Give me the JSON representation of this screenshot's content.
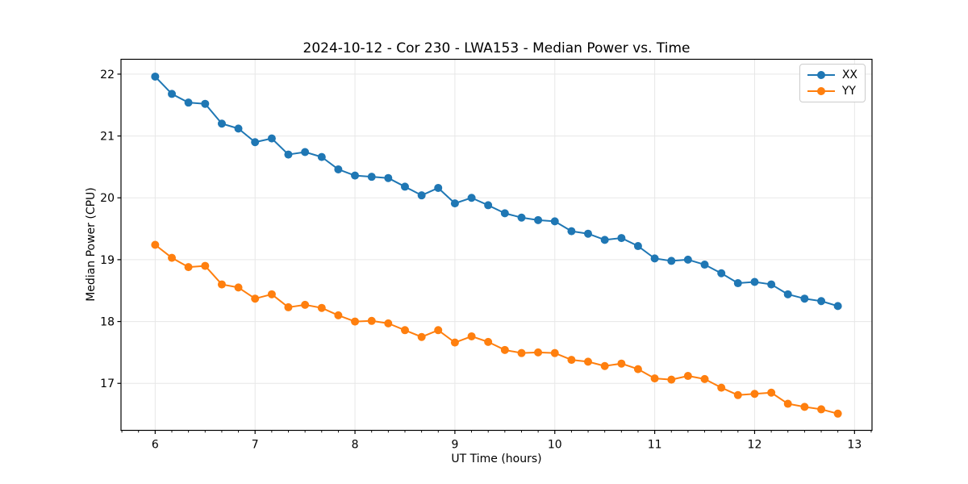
{
  "chart_data": {
    "type": "line",
    "title": "2024-10-12 - Cor 230 - LWA153 - Median Power vs. Time",
    "xlabel": "UT Time (hours)",
    "ylabel": "Median Power (CPU)",
    "grid": true,
    "legend_position": "upper right",
    "marker": "o",
    "xlim": [
      5.658,
      13.175
    ],
    "ylim": [
      16.24,
      22.24
    ],
    "xticks": [
      6,
      7,
      8,
      9,
      10,
      11,
      12,
      13
    ],
    "yticks": [
      17,
      18,
      19,
      20,
      21,
      22
    ],
    "x_minor_tick_step": 0.1667,
    "x": [
      6.0,
      6.167,
      6.333,
      6.5,
      6.667,
      6.833,
      7.0,
      7.167,
      7.333,
      7.5,
      7.667,
      7.833,
      8.0,
      8.167,
      8.333,
      8.5,
      8.667,
      8.833,
      9.0,
      9.167,
      9.333,
      9.5,
      9.667,
      9.833,
      10.0,
      10.167,
      10.333,
      10.5,
      10.667,
      10.833,
      11.0,
      11.167,
      11.333,
      11.5,
      11.667,
      11.833,
      12.0,
      12.167,
      12.333,
      12.5,
      12.667,
      12.833
    ],
    "series": [
      {
        "name": "XX",
        "color": "#1f77b4",
        "values": [
          21.96,
          21.68,
          21.54,
          21.52,
          21.2,
          21.12,
          20.9,
          20.96,
          20.7,
          20.74,
          20.66,
          20.46,
          20.36,
          20.34,
          20.32,
          20.18,
          20.04,
          20.16,
          19.91,
          20.0,
          19.88,
          19.75,
          19.68,
          19.64,
          19.62,
          19.46,
          19.42,
          19.32,
          19.35,
          19.22,
          19.02,
          18.98,
          19.0,
          18.92,
          18.78,
          18.62,
          18.64,
          18.6,
          18.44,
          18.37,
          18.33,
          18.25
        ]
      },
      {
        "name": "YY",
        "color": "#ff7f0e",
        "values": [
          19.24,
          19.03,
          18.88,
          18.9,
          18.6,
          18.55,
          18.37,
          18.44,
          18.23,
          18.27,
          18.22,
          18.1,
          18.0,
          18.01,
          17.97,
          17.86,
          17.75,
          17.86,
          17.66,
          17.76,
          17.67,
          17.54,
          17.49,
          17.5,
          17.49,
          17.38,
          17.35,
          17.28,
          17.32,
          17.23,
          17.08,
          17.06,
          17.12,
          17.07,
          16.93,
          16.81,
          16.83,
          16.85,
          16.67,
          16.62,
          16.58,
          16.51
        ]
      }
    ],
    "style": {
      "grid_color": "#e7e7e7",
      "spine_color": "#000000",
      "background": "#ffffff"
    }
  }
}
